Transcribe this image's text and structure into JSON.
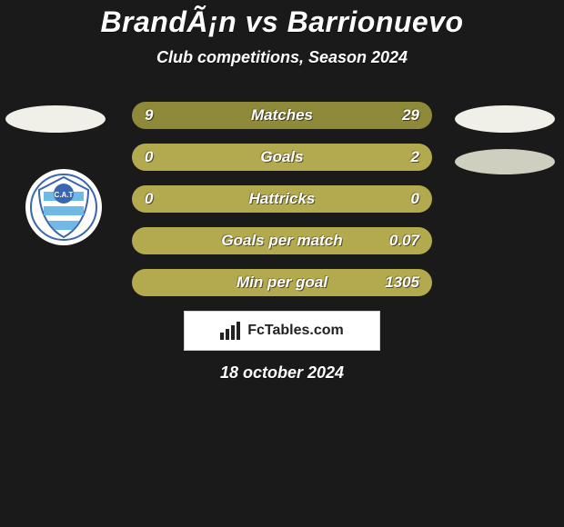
{
  "title": "BrandÃ¡n vs Barrionuevo",
  "subtitle": "Club competitions, Season 2024",
  "date": "18 october 2024",
  "attribution": "FcTables.com",
  "colors": {
    "background": "#1a1a1a",
    "pill_olive": "#8e8a3a",
    "pill_khaki": "#b3aa4f",
    "text": "#ffffff"
  },
  "stats": {
    "type": "comparison-bars",
    "rows": [
      {
        "label": "Matches",
        "left": "9",
        "right": "29",
        "bg": "#8e8a3a"
      },
      {
        "label": "Goals",
        "left": "0",
        "right": "2",
        "bg": "#b3aa4f"
      },
      {
        "label": "Hattricks",
        "left": "0",
        "right": "0",
        "bg": "#b3aa4f"
      },
      {
        "label": "Goals per match",
        "left": "",
        "right": "0.07",
        "bg": "#b3aa4f"
      },
      {
        "label": "Min per goal",
        "left": "",
        "right": "1305",
        "bg": "#b3aa4f"
      }
    ]
  }
}
